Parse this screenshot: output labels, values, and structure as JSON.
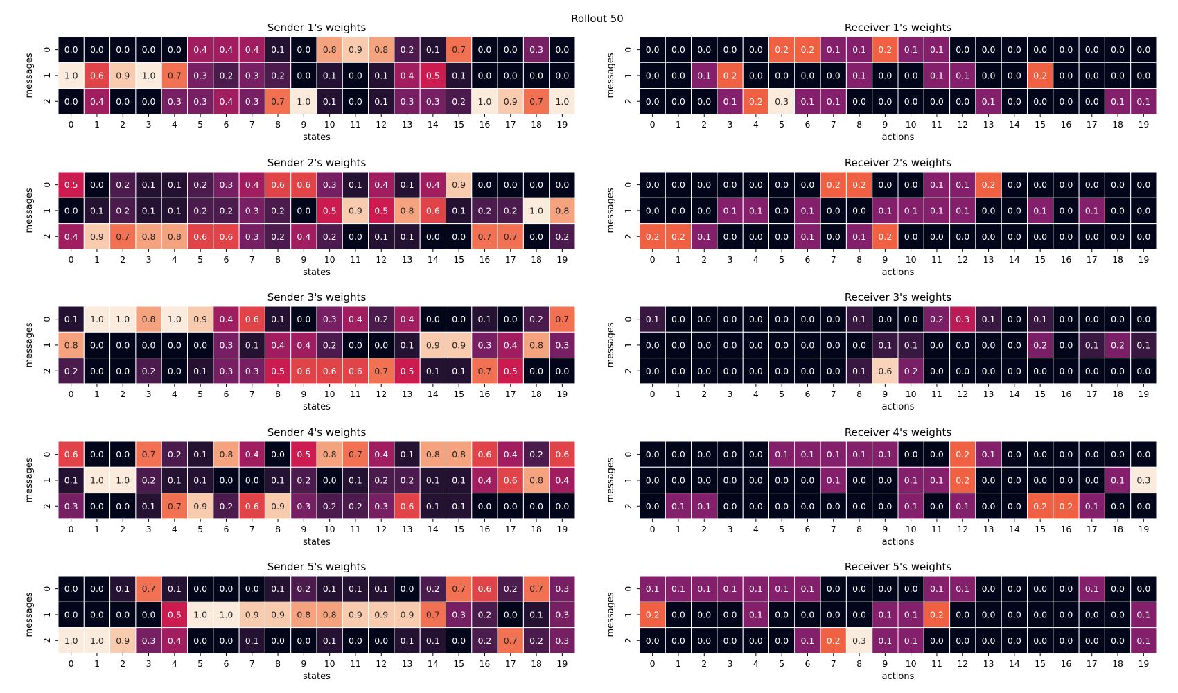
{
  "suptitle": "Rollout 50",
  "colormap": [
    "#03051a",
    "#3c1a44",
    "#84206b",
    "#cb1b4f",
    "#f06043",
    "#f6b48e",
    "#faebdd"
  ],
  "chart_data": [
    {
      "type": "heatmap",
      "title": "Sender 1's weights",
      "xlabel": "states",
      "ylabel": "messages",
      "x": [
        "0",
        "1",
        "2",
        "3",
        "4",
        "5",
        "6",
        "7",
        "8",
        "9",
        "10",
        "11",
        "12",
        "13",
        "14",
        "15",
        "16",
        "17",
        "18",
        "19"
      ],
      "y": [
        "0",
        "1",
        "2"
      ],
      "vmin": 0,
      "vmax": 1,
      "values": [
        [
          0.0,
          0.0,
          0.0,
          0.0,
          0.0,
          0.4,
          0.4,
          0.4,
          0.1,
          0.0,
          0.8,
          0.9,
          0.8,
          0.2,
          0.1,
          0.7,
          0.0,
          0.0,
          0.3,
          0.0
        ],
        [
          1.0,
          0.6,
          0.9,
          1.0,
          0.7,
          0.3,
          0.2,
          0.3,
          0.2,
          0.0,
          0.1,
          0.0,
          0.1,
          0.4,
          0.5,
          0.1,
          0.0,
          0.0,
          0.0,
          0.0
        ],
        [
          0.0,
          0.4,
          0.0,
          0.0,
          0.3,
          0.3,
          0.4,
          0.3,
          0.7,
          1.0,
          0.1,
          0.0,
          0.1,
          0.3,
          0.3,
          0.2,
          1.0,
          0.9,
          0.7,
          1.0
        ]
      ]
    },
    {
      "type": "heatmap",
      "title": "Receiver 1's weights",
      "xlabel": "actions",
      "ylabel": "messages",
      "x": [
        "0",
        "1",
        "2",
        "3",
        "4",
        "5",
        "6",
        "7",
        "8",
        "9",
        "10",
        "11",
        "12",
        "13",
        "14",
        "15",
        "16",
        "17",
        "18",
        "19"
      ],
      "y": [
        "0",
        "1",
        "2"
      ],
      "vmin": 0,
      "vmax": 0.3,
      "values": [
        [
          0.0,
          0.0,
          0.0,
          0.0,
          0.0,
          0.2,
          0.2,
          0.1,
          0.1,
          0.2,
          0.1,
          0.1,
          0.0,
          0.0,
          0.0,
          0.0,
          0.0,
          0.0,
          0.0,
          0.0
        ],
        [
          0.0,
          0.0,
          0.1,
          0.2,
          0.0,
          0.0,
          0.0,
          0.0,
          0.1,
          0.0,
          0.0,
          0.1,
          0.1,
          0.0,
          0.0,
          0.2,
          0.0,
          0.0,
          0.0,
          0.0
        ],
        [
          0.0,
          0.0,
          0.0,
          0.1,
          0.2,
          0.3,
          0.1,
          0.1,
          0.0,
          0.0,
          0.0,
          0.0,
          0.0,
          0.1,
          0.0,
          0.0,
          0.0,
          0.0,
          0.1,
          0.1
        ]
      ]
    },
    {
      "type": "heatmap",
      "title": "Sender 2's weights",
      "xlabel": "states",
      "ylabel": "messages",
      "x": [
        "0",
        "1",
        "2",
        "3",
        "4",
        "5",
        "6",
        "7",
        "8",
        "9",
        "10",
        "11",
        "12",
        "13",
        "14",
        "15",
        "16",
        "17",
        "18",
        "19"
      ],
      "y": [
        "0",
        "1",
        "2"
      ],
      "vmin": 0,
      "vmax": 1,
      "values": [
        [
          0.5,
          0.0,
          0.2,
          0.1,
          0.1,
          0.2,
          0.3,
          0.4,
          0.6,
          0.6,
          0.3,
          0.1,
          0.4,
          0.1,
          0.4,
          0.9,
          0.0,
          0.0,
          0.0,
          0.0
        ],
        [
          0.0,
          0.1,
          0.2,
          0.1,
          0.1,
          0.2,
          0.2,
          0.3,
          0.2,
          0.0,
          0.5,
          0.9,
          0.5,
          0.8,
          0.6,
          0.1,
          0.2,
          0.2,
          1.0,
          0.8
        ],
        [
          0.4,
          0.9,
          0.7,
          0.8,
          0.8,
          0.6,
          0.6,
          0.3,
          0.2,
          0.4,
          0.2,
          0.0,
          0.1,
          0.1,
          0.0,
          0.0,
          0.7,
          0.7,
          0.0,
          0.2
        ]
      ]
    },
    {
      "type": "heatmap",
      "title": "Receiver 2's weights",
      "xlabel": "actions",
      "ylabel": "messages",
      "x": [
        "0",
        "1",
        "2",
        "3",
        "4",
        "5",
        "6",
        "7",
        "8",
        "9",
        "10",
        "11",
        "12",
        "13",
        "14",
        "15",
        "16",
        "17",
        "18",
        "19"
      ],
      "y": [
        "0",
        "1",
        "2"
      ],
      "vmin": 0,
      "vmax": 0.3,
      "values": [
        [
          0.0,
          0.0,
          0.0,
          0.0,
          0.0,
          0.0,
          0.0,
          0.2,
          0.2,
          0.0,
          0.0,
          0.1,
          0.1,
          0.2,
          0.0,
          0.0,
          0.0,
          0.0,
          0.0,
          0.0
        ],
        [
          0.0,
          0.0,
          0.0,
          0.1,
          0.1,
          0.0,
          0.1,
          0.0,
          0.0,
          0.1,
          0.1,
          0.1,
          0.1,
          0.0,
          0.0,
          0.1,
          0.0,
          0.1,
          0.0,
          0.0
        ],
        [
          0.2,
          0.2,
          0.1,
          0.0,
          0.0,
          0.0,
          0.1,
          0.0,
          0.1,
          0.2,
          0.0,
          0.0,
          0.0,
          0.0,
          0.0,
          0.0,
          0.0,
          0.0,
          0.0,
          0.0
        ]
      ]
    },
    {
      "type": "heatmap",
      "title": "Sender 3's weights",
      "xlabel": "states",
      "ylabel": "messages",
      "x": [
        "0",
        "1",
        "2",
        "3",
        "4",
        "5",
        "6",
        "7",
        "8",
        "9",
        "10",
        "11",
        "12",
        "13",
        "14",
        "15",
        "16",
        "17",
        "18",
        "19"
      ],
      "y": [
        "0",
        "1",
        "2"
      ],
      "vmin": 0,
      "vmax": 1,
      "values": [
        [
          0.1,
          1.0,
          1.0,
          0.8,
          1.0,
          0.9,
          0.4,
          0.6,
          0.1,
          0.0,
          0.3,
          0.4,
          0.2,
          0.4,
          0.0,
          0.0,
          0.1,
          0.0,
          0.2,
          0.7
        ],
        [
          0.8,
          0.0,
          0.0,
          0.0,
          0.0,
          0.0,
          0.3,
          0.1,
          0.4,
          0.4,
          0.2,
          0.0,
          0.0,
          0.1,
          0.9,
          0.9,
          0.3,
          0.4,
          0.8,
          0.3
        ],
        [
          0.2,
          0.0,
          0.0,
          0.2,
          0.0,
          0.1,
          0.3,
          0.3,
          0.5,
          0.6,
          0.6,
          0.6,
          0.7,
          0.5,
          0.1,
          0.1,
          0.7,
          0.5,
          0.0,
          0.0
        ]
      ]
    },
    {
      "type": "heatmap",
      "title": "Receiver 3's weights",
      "xlabel": "actions",
      "ylabel": "messages",
      "x": [
        "0",
        "1",
        "2",
        "3",
        "4",
        "5",
        "6",
        "7",
        "8",
        "9",
        "10",
        "11",
        "12",
        "13",
        "14",
        "15",
        "16",
        "17",
        "18",
        "19"
      ],
      "y": [
        "0",
        "1",
        "2"
      ],
      "vmin": 0,
      "vmax": 0.65,
      "values": [
        [
          0.1,
          0.0,
          0.0,
          0.0,
          0.0,
          0.0,
          0.0,
          0.0,
          0.1,
          0.0,
          0.0,
          0.2,
          0.3,
          0.1,
          0.0,
          0.1,
          0.0,
          0.0,
          0.0,
          0.0
        ],
        [
          0.0,
          0.0,
          0.0,
          0.0,
          0.0,
          0.0,
          0.0,
          0.0,
          0.0,
          0.1,
          0.1,
          0.0,
          0.0,
          0.0,
          0.0,
          0.2,
          0.0,
          0.1,
          0.2,
          0.1
        ],
        [
          0.0,
          0.0,
          0.0,
          0.0,
          0.0,
          0.0,
          0.0,
          0.0,
          0.1,
          0.6,
          0.2,
          0.0,
          0.0,
          0.0,
          0.0,
          0.0,
          0.0,
          0.0,
          0.0,
          0.0
        ]
      ]
    },
    {
      "type": "heatmap",
      "title": "Sender 4's weights",
      "xlabel": "states",
      "ylabel": "messages",
      "x": [
        "0",
        "1",
        "2",
        "3",
        "4",
        "5",
        "6",
        "7",
        "8",
        "9",
        "10",
        "11",
        "12",
        "13",
        "14",
        "15",
        "16",
        "17",
        "18",
        "19"
      ],
      "y": [
        "0",
        "1",
        "2"
      ],
      "vmin": 0,
      "vmax": 1,
      "values": [
        [
          0.6,
          0.0,
          0.0,
          0.7,
          0.2,
          0.1,
          0.8,
          0.4,
          0.0,
          0.5,
          0.8,
          0.7,
          0.4,
          0.1,
          0.8,
          0.8,
          0.6,
          0.4,
          0.2,
          0.6
        ],
        [
          0.1,
          1.0,
          1.0,
          0.2,
          0.1,
          0.1,
          0.0,
          0.0,
          0.1,
          0.2,
          0.0,
          0.1,
          0.2,
          0.2,
          0.1,
          0.1,
          0.4,
          0.6,
          0.8,
          0.4
        ],
        [
          0.3,
          0.0,
          0.0,
          0.1,
          0.7,
          0.9,
          0.2,
          0.6,
          0.9,
          0.3,
          0.2,
          0.2,
          0.3,
          0.6,
          0.1,
          0.1,
          0.0,
          0.0,
          0.0,
          0.0
        ]
      ]
    },
    {
      "type": "heatmap",
      "title": "Receiver 4's weights",
      "xlabel": "actions",
      "ylabel": "messages",
      "x": [
        "0",
        "1",
        "2",
        "3",
        "4",
        "5",
        "6",
        "7",
        "8",
        "9",
        "10",
        "11",
        "12",
        "13",
        "14",
        "15",
        "16",
        "17",
        "18",
        "19"
      ],
      "y": [
        "0",
        "1",
        "2"
      ],
      "vmin": 0,
      "vmax": 0.3,
      "values": [
        [
          0.0,
          0.0,
          0.0,
          0.0,
          0.0,
          0.1,
          0.1,
          0.1,
          0.1,
          0.1,
          0.0,
          0.0,
          0.2,
          0.1,
          0.0,
          0.0,
          0.0,
          0.0,
          0.0,
          0.0
        ],
        [
          0.0,
          0.0,
          0.0,
          0.0,
          0.0,
          0.0,
          0.0,
          0.1,
          0.0,
          0.0,
          0.1,
          0.1,
          0.2,
          0.0,
          0.0,
          0.0,
          0.0,
          0.0,
          0.1,
          0.3
        ],
        [
          0.0,
          0.1,
          0.1,
          0.0,
          0.0,
          0.0,
          0.0,
          0.0,
          0.0,
          0.0,
          0.1,
          0.0,
          0.1,
          0.0,
          0.0,
          0.2,
          0.2,
          0.1,
          0.0,
          0.0
        ]
      ]
    },
    {
      "type": "heatmap",
      "title": "Sender 5's weights",
      "xlabel": "states",
      "ylabel": "messages",
      "x": [
        "0",
        "1",
        "2",
        "3",
        "4",
        "5",
        "6",
        "7",
        "8",
        "9",
        "10",
        "11",
        "12",
        "13",
        "14",
        "15",
        "16",
        "17",
        "18",
        "19"
      ],
      "y": [
        "0",
        "1",
        "2"
      ],
      "vmin": 0,
      "vmax": 1,
      "values": [
        [
          0.0,
          0.0,
          0.1,
          0.7,
          0.1,
          0.0,
          0.0,
          0.0,
          0.1,
          0.2,
          0.1,
          0.1,
          0.1,
          0.0,
          0.2,
          0.7,
          0.6,
          0.2,
          0.7,
          0.3
        ],
        [
          0.0,
          0.0,
          0.0,
          0.0,
          0.5,
          1.0,
          1.0,
          0.9,
          0.9,
          0.8,
          0.8,
          0.9,
          0.9,
          0.9,
          0.7,
          0.3,
          0.2,
          0.0,
          0.1,
          0.3
        ],
        [
          1.0,
          1.0,
          0.9,
          0.3,
          0.4,
          0.0,
          0.0,
          0.1,
          0.0,
          0.0,
          0.1,
          0.0,
          0.0,
          0.1,
          0.1,
          0.0,
          0.2,
          0.7,
          0.2,
          0.3
        ]
      ]
    },
    {
      "type": "heatmap",
      "title": "Receiver 5's weights",
      "xlabel": "actions",
      "ylabel": "messages",
      "x": [
        "0",
        "1",
        "2",
        "3",
        "4",
        "5",
        "6",
        "7",
        "8",
        "9",
        "10",
        "11",
        "12",
        "13",
        "14",
        "15",
        "16",
        "17",
        "18",
        "19"
      ],
      "y": [
        "0",
        "1",
        "2"
      ],
      "vmin": 0,
      "vmax": 0.3,
      "values": [
        [
          0.1,
          0.1,
          0.1,
          0.1,
          0.1,
          0.1,
          0.1,
          0.0,
          0.0,
          0.0,
          0.0,
          0.1,
          0.1,
          0.0,
          0.0,
          0.0,
          0.0,
          0.1,
          0.0,
          0.0
        ],
        [
          0.2,
          0.0,
          0.0,
          0.0,
          0.1,
          0.0,
          0.0,
          0.0,
          0.0,
          0.1,
          0.1,
          0.2,
          0.0,
          0.0,
          0.0,
          0.0,
          0.0,
          0.0,
          0.0,
          0.1
        ],
        [
          0.0,
          0.0,
          0.0,
          0.0,
          0.0,
          0.0,
          0.1,
          0.2,
          0.3,
          0.1,
          0.1,
          0.0,
          0.0,
          0.0,
          0.0,
          0.0,
          0.0,
          0.0,
          0.0,
          0.1
        ]
      ]
    }
  ]
}
